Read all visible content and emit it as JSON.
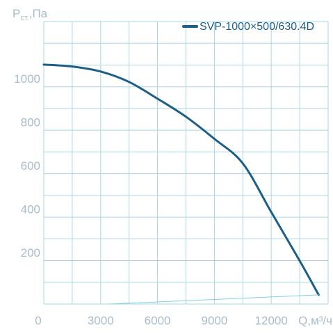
{
  "chart_data": {
    "type": "line",
    "y_label": {
      "main": "P",
      "sub": "ст.",
      "rest": ",Па"
    },
    "x_label": "Q,м³/ч",
    "xlim": [
      0,
      15000
    ],
    "ylim": [
      0,
      1300
    ],
    "xticks": [
      0,
      3000,
      6000,
      9000,
      12000
    ],
    "yticks": [
      200,
      400,
      600,
      800,
      1000
    ],
    "x_grid": [
      0,
      1500,
      3000,
      4500,
      6000,
      7500,
      9000,
      10500,
      12000,
      13500,
      15000
    ],
    "y_grid": [
      0,
      100,
      200,
      300,
      400,
      500,
      600,
      700,
      800,
      900,
      1000,
      1100,
      1200,
      1300
    ],
    "grid_color": "#aad5e6",
    "series": [
      {
        "name": "SVP-1000×500/630.4D",
        "color": "#1c5e87",
        "width": 3,
        "x": [
          0,
          1500,
          3000,
          4500,
          6000,
          7500,
          9000,
          10500,
          12000,
          13500,
          14500
        ],
        "values": [
          1102,
          1093,
          1070,
          1022,
          945,
          862,
          760,
          647,
          423,
          199,
          42
        ]
      },
      {
        "color": "#7fd0e8",
        "width": 1,
        "x": [
          3500,
          14500
        ],
        "values": [
          0,
          42
        ]
      }
    ]
  }
}
